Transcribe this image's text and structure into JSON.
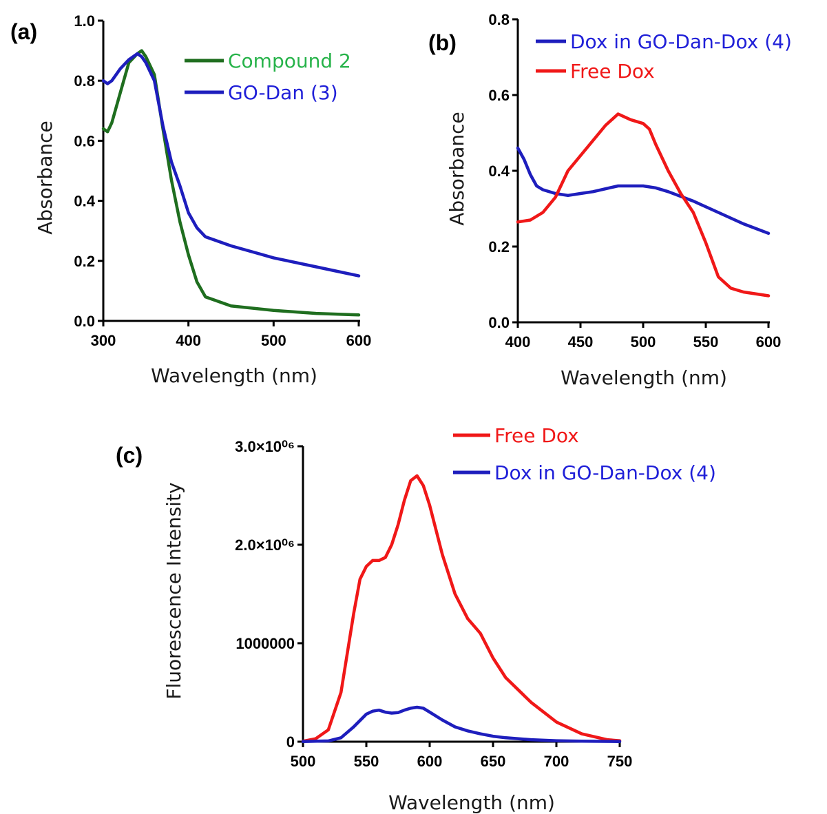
{
  "colors": {
    "green": "#1f6e1f",
    "blue": "#1e1ebd",
    "red": "#f01818",
    "axis": "#000000"
  },
  "chart_data": [
    {
      "id": "a",
      "type": "line",
      "panel_label": "(a)",
      "xlabel": "Wavelength (nm)",
      "ylabel": "Absorbance",
      "xlim": [
        300,
        600
      ],
      "ylim": [
        0,
        1.0
      ],
      "x_ticks": [
        300,
        400,
        500,
        600
      ],
      "x_tick_labels": [
        "300",
        "400",
        "500",
        "600"
      ],
      "y_ticks": [
        0,
        0.2,
        0.4,
        0.6,
        0.8,
        1.0
      ],
      "y_tick_labels": [
        "0.0",
        "0.2",
        "0.4",
        "0.6",
        "0.8",
        "1.0"
      ],
      "legend_position": "top-right",
      "series": [
        {
          "name": "Compound 2",
          "color": "#1f6e1f",
          "label_color": "#27b34a",
          "x": [
            300,
            305,
            310,
            320,
            330,
            340,
            345,
            350,
            360,
            370,
            380,
            390,
            400,
            410,
            420,
            430,
            450,
            500,
            550,
            600
          ],
          "y": [
            0.64,
            0.63,
            0.66,
            0.76,
            0.86,
            0.89,
            0.9,
            0.88,
            0.82,
            0.64,
            0.47,
            0.33,
            0.22,
            0.13,
            0.08,
            0.07,
            0.05,
            0.035,
            0.025,
            0.02
          ]
        },
        {
          "name": "GO-Dan (3)",
          "color": "#1e1ebd",
          "label_color": "#2020d8",
          "x": [
            300,
            305,
            310,
            320,
            330,
            340,
            345,
            350,
            360,
            370,
            380,
            390,
            400,
            410,
            420,
            430,
            450,
            500,
            550,
            600
          ],
          "y": [
            0.8,
            0.79,
            0.8,
            0.84,
            0.87,
            0.89,
            0.88,
            0.86,
            0.8,
            0.65,
            0.53,
            0.45,
            0.36,
            0.31,
            0.28,
            0.27,
            0.25,
            0.21,
            0.18,
            0.15
          ]
        }
      ]
    },
    {
      "id": "b",
      "type": "line",
      "panel_label": "(b)",
      "xlabel": "Wavelength (nm)",
      "ylabel": "Absorbance",
      "xlim": [
        400,
        600
      ],
      "ylim": [
        0,
        0.8
      ],
      "x_ticks": [
        400,
        450,
        500,
        550,
        600
      ],
      "x_tick_labels": [
        "400",
        "450",
        "500",
        "550",
        "600"
      ],
      "y_ticks": [
        0,
        0.2,
        0.4,
        0.6,
        0.8
      ],
      "y_tick_labels": [
        "0.0",
        "0.2",
        "0.4",
        "0.6",
        "0.8"
      ],
      "legend_position": "top-right",
      "series": [
        {
          "name": "Dox in GO-Dan-Dox (4)",
          "color": "#1e1ebd",
          "label_color": "#2020d8",
          "x": [
            400,
            405,
            410,
            415,
            420,
            430,
            440,
            450,
            460,
            480,
            500,
            510,
            520,
            540,
            560,
            580,
            600
          ],
          "y": [
            0.46,
            0.43,
            0.39,
            0.36,
            0.35,
            0.34,
            0.335,
            0.34,
            0.345,
            0.36,
            0.36,
            0.355,
            0.345,
            0.32,
            0.29,
            0.26,
            0.235
          ]
        },
        {
          "name": "Free Dox",
          "color": "#f01818",
          "label_color": "#f01818",
          "x": [
            400,
            410,
            420,
            430,
            440,
            450,
            460,
            470,
            480,
            490,
            500,
            505,
            510,
            520,
            530,
            540,
            550,
            560,
            570,
            580,
            600
          ],
          "y": [
            0.265,
            0.27,
            0.29,
            0.33,
            0.4,
            0.44,
            0.48,
            0.52,
            0.55,
            0.535,
            0.525,
            0.51,
            0.47,
            0.4,
            0.34,
            0.29,
            0.21,
            0.12,
            0.09,
            0.08,
            0.07
          ]
        }
      ]
    },
    {
      "id": "c",
      "type": "line",
      "panel_label": "(c)",
      "xlabel": "Wavelength (nm)",
      "ylabel": "Fluorescence Intensity",
      "xlim": [
        500,
        750
      ],
      "ylim": [
        0,
        3000000
      ],
      "x_ticks": [
        500,
        550,
        600,
        650,
        700,
        750
      ],
      "x_tick_labels": [
        "500",
        "550",
        "600",
        "650",
        "700",
        "750"
      ],
      "y_ticks": [
        0,
        1000000,
        2000000,
        3000000
      ],
      "y_tick_labels": [
        "0",
        "1000000",
        "2.0×10⁰⁶",
        "3.0×10⁰⁶"
      ],
      "legend_position": "top-right",
      "series": [
        {
          "name": "Free Dox",
          "color": "#f01818",
          "label_color": "#f01818",
          "x": [
            500,
            510,
            520,
            530,
            540,
            545,
            550,
            555,
            560,
            565,
            570,
            575,
            580,
            585,
            590,
            595,
            600,
            610,
            620,
            630,
            640,
            650,
            660,
            680,
            700,
            720,
            740,
            750
          ],
          "y": [
            5000,
            30000,
            120000,
            500000,
            1300000,
            1650000,
            1780000,
            1840000,
            1840000,
            1870000,
            2000000,
            2200000,
            2450000,
            2650000,
            2700000,
            2600000,
            2400000,
            1900000,
            1500000,
            1250000,
            1100000,
            850000,
            650000,
            400000,
            200000,
            80000,
            20000,
            10000
          ]
        },
        {
          "name": "Dox in GO-Dan-Dox (4)",
          "color": "#1e1ebd",
          "label_color": "#2020d8",
          "x": [
            500,
            520,
            530,
            540,
            550,
            555,
            560,
            565,
            570,
            575,
            580,
            585,
            590,
            595,
            600,
            610,
            620,
            630,
            640,
            650,
            660,
            680,
            700,
            720,
            750
          ],
          "y": [
            2000,
            8000,
            40000,
            150000,
            280000,
            310000,
            320000,
            300000,
            290000,
            295000,
            320000,
            340000,
            350000,
            340000,
            300000,
            220000,
            150000,
            110000,
            80000,
            55000,
            40000,
            20000,
            10000,
            5000,
            2000
          ]
        }
      ]
    }
  ]
}
